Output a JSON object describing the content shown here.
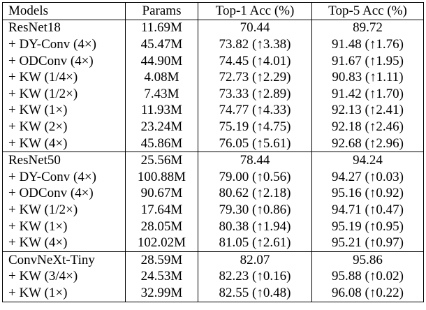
{
  "headers": [
    "Models",
    "Params",
    "Top-1 Acc (%)",
    "Top-5 Acc (%)"
  ],
  "rows": [
    {
      "model": "ResNet18",
      "params": "11.69M",
      "top1": "70.44",
      "top5": "89.72",
      "group_start": true,
      "bold1": false,
      "bold5": false
    },
    {
      "model": "+ DY-Conv (4×)",
      "params": "45.47M",
      "top1": "73.82 (↑3.38)",
      "top5": "91.48 (↑1.76)",
      "group_start": false,
      "bold1": false,
      "bold5": false
    },
    {
      "model": "+ ODConv (4×)",
      "params": "44.90M",
      "top1": "74.45 (↑4.01)",
      "top5": "91.67 (↑1.95)",
      "group_start": false,
      "bold1": false,
      "bold5": false
    },
    {
      "model": "+ KW (1/4×)",
      "params": "4.08M",
      "top1": "72.73 (↑2.29)",
      "top5": "90.83 (↑1.11)",
      "group_start": false,
      "bold1": false,
      "bold5": false
    },
    {
      "model": "+ KW (1/2×)",
      "params": "7.43M",
      "top1": "73.33 (↑2.89)",
      "top5": "91.42 (↑1.70)",
      "group_start": false,
      "bold1": false,
      "bold5": false
    },
    {
      "model": "+ KW (1×)",
      "params": "11.93M",
      "top1": "74.77 (↑4.33)",
      "top5": "92.13 (↑2.41)",
      "group_start": false,
      "bold1": false,
      "bold5": false
    },
    {
      "model": "+ KW (2×)",
      "params": "23.24M",
      "top1": "75.19 (↑4.75)",
      "top5": "92.18 (↑2.46)",
      "group_start": false,
      "bold1": false,
      "bold5": false
    },
    {
      "model": "+ KW (4×)",
      "params": "45.86M",
      "top1": "76.05 (↑5.61)",
      "top5": "92.68 (↑2.96)",
      "group_start": false,
      "bold1": true,
      "bold5": true
    },
    {
      "model": "ResNet50",
      "params": "25.56M",
      "top1": "78.44",
      "top5": "94.24",
      "group_start": true,
      "bold1": false,
      "bold5": false
    },
    {
      "model": "+ DY-Conv (4×)",
      "params": "100.88M",
      "top1": "79.00 (↑0.56)",
      "top5": "94.27 (↑0.03)",
      "group_start": false,
      "bold1": false,
      "bold5": false
    },
    {
      "model": "+ ODConv (4×)",
      "params": "90.67M",
      "top1": "80.62 (↑2.18)",
      "top5": "95.16 (↑0.92)",
      "group_start": false,
      "bold1": false,
      "bold5": false
    },
    {
      "model": "+ KW (1/2×)",
      "params": "17.64M",
      "top1": "79.30 (↑0.86)",
      "top5": "94.71 (↑0.47)",
      "group_start": false,
      "bold1": false,
      "bold5": false
    },
    {
      "model": "+ KW (1×)",
      "params": "28.05M",
      "top1": "80.38 (↑1.94)",
      "top5": "95.19 (↑0.95)",
      "group_start": false,
      "bold1": false,
      "bold5": false
    },
    {
      "model": "+ KW (4×)",
      "params": "102.02M",
      "top1": "81.05 (↑2.61)",
      "top5": "95.21 (↑0.97)",
      "group_start": false,
      "bold1": true,
      "bold5": true
    },
    {
      "model": "ConvNeXt-Tiny",
      "params": "28.59M",
      "top1": "82.07",
      "top5": "95.86",
      "group_start": true,
      "bold1": false,
      "bold5": false
    },
    {
      "model": "+ KW (3/4×)",
      "params": "24.53M",
      "top1": "82.23 (↑0.16)",
      "top5": "95.88 (↑0.02)",
      "group_start": false,
      "bold1": false,
      "bold5": false
    },
    {
      "model": "+ KW (1×)",
      "params": "32.99M",
      "top1": "82.55 (↑0.48)",
      "top5": "96.08 (↑0.22)",
      "group_start": false,
      "bold1": true,
      "bold5": true
    }
  ]
}
